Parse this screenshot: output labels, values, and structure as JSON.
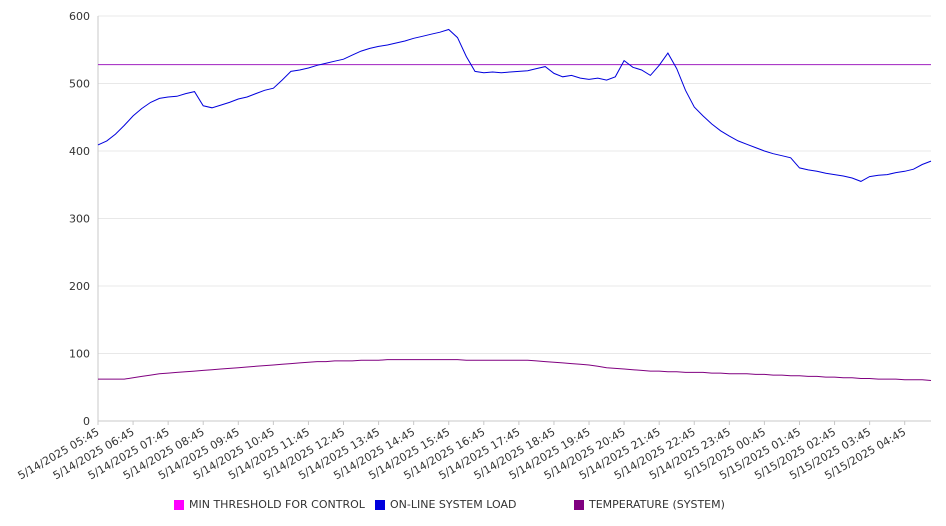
{
  "chart_data": {
    "type": "line",
    "title": "",
    "xlabel": "",
    "ylabel": "",
    "ylim": [
      0,
      600
    ],
    "yticks": [
      0,
      100,
      200,
      300,
      400,
      500,
      600
    ],
    "grid": true,
    "legend_position": "bottom",
    "xtick_labels": [
      "5/14/2025 05:45",
      "5/14/2025 06:45",
      "5/14/2025 07:45",
      "5/14/2025 08:45",
      "5/14/2025 09:45",
      "5/14/2025 10:45",
      "5/14/2025 11:45",
      "5/14/2025 12:45",
      "5/14/2025 13:45",
      "5/14/2025 14:45",
      "5/14/2025 15:45",
      "5/14/2025 16:45",
      "5/14/2025 17:45",
      "5/14/2025 18:45",
      "5/14/2025 19:45",
      "5/14/2025 20:45",
      "5/14/2025 21:45",
      "5/14/2025 22:45",
      "5/14/2025 23:45",
      "5/15/2025 00:45",
      "5/15/2025 01:45",
      "5/15/2025 02:45",
      "5/15/2025 03:45",
      "5/15/2025 04:45"
    ],
    "x_time": [
      "05:45",
      "06:00",
      "06:15",
      "06:30",
      "06:45",
      "07:00",
      "07:15",
      "07:30",
      "07:45",
      "08:00",
      "08:15",
      "08:30",
      "08:45",
      "09:00",
      "09:15",
      "09:30",
      "09:45",
      "10:00",
      "10:15",
      "10:30",
      "10:45",
      "11:00",
      "11:15",
      "11:30",
      "11:45",
      "12:00",
      "12:15",
      "12:30",
      "12:45",
      "13:00",
      "13:15",
      "13:30",
      "13:45",
      "14:00",
      "14:15",
      "14:30",
      "14:45",
      "15:00",
      "15:15",
      "15:30",
      "15:45",
      "16:00",
      "16:15",
      "16:30",
      "16:45",
      "17:00",
      "17:15",
      "17:30",
      "17:45",
      "18:00",
      "18:15",
      "18:30",
      "18:45",
      "19:00",
      "19:15",
      "19:30",
      "19:45",
      "20:00",
      "20:15",
      "20:30",
      "20:45",
      "21:00",
      "21:15",
      "21:30",
      "21:45",
      "22:00",
      "22:15",
      "22:30",
      "22:45",
      "23:00",
      "23:15",
      "23:30",
      "23:45",
      "00:00",
      "00:15",
      "00:30",
      "00:45",
      "01:00",
      "01:15",
      "01:30",
      "01:45",
      "02:00",
      "02:15",
      "02:30",
      "02:45",
      "03:00",
      "03:15",
      "03:30",
      "03:45",
      "04:00",
      "04:15",
      "04:30",
      "04:45",
      "05:00",
      "05:15",
      "05:30"
    ],
    "series": [
      {
        "name": "MIN THRESHOLD FOR CONTROL",
        "color": "#ff00ff",
        "line_color": "#a020c0",
        "constant": 528
      },
      {
        "name": "ON-LINE SYSTEM LOAD",
        "color": "#0000dd",
        "values": [
          409,
          415,
          425,
          438,
          452,
          463,
          472,
          478,
          480,
          481,
          485,
          488,
          467,
          464,
          468,
          472,
          477,
          480,
          485,
          490,
          493,
          505,
          518,
          520,
          523,
          527,
          530,
          533,
          536,
          542,
          548,
          552,
          555,
          557,
          560,
          563,
          567,
          570,
          573,
          576,
          580,
          568,
          540,
          518,
          516,
          517,
          516,
          517,
          518,
          519,
          522,
          525,
          515,
          510,
          512,
          508,
          506,
          508,
          505,
          510,
          534,
          524,
          520,
          512,
          527,
          545,
          522,
          490,
          465,
          452,
          440,
          430,
          422,
          415,
          410,
          405,
          400,
          396,
          393,
          390,
          375,
          372,
          370,
          367,
          365,
          363,
          360,
          355,
          362,
          364,
          365,
          368,
          370,
          373,
          380,
          385
        ]
      },
      {
        "name": "TEMPERATURE (SYSTEM)",
        "color": "#800080",
        "values": [
          62,
          62,
          62,
          62,
          64,
          66,
          68,
          70,
          71,
          72,
          73,
          74,
          75,
          76,
          77,
          78,
          79,
          80,
          81,
          82,
          83,
          84,
          85,
          86,
          87,
          88,
          88,
          89,
          89,
          89,
          90,
          90,
          90,
          91,
          91,
          91,
          91,
          91,
          91,
          91,
          91,
          91,
          90,
          90,
          90,
          90,
          90,
          90,
          90,
          90,
          89,
          88,
          87,
          86,
          85,
          84,
          83,
          81,
          79,
          78,
          77,
          76,
          75,
          74,
          74,
          73,
          73,
          72,
          72,
          72,
          71,
          71,
          70,
          70,
          70,
          69,
          69,
          68,
          68,
          67,
          67,
          66,
          66,
          65,
          65,
          64,
          64,
          63,
          63,
          62,
          62,
          62,
          61,
          61,
          61,
          60
        ]
      }
    ]
  }
}
